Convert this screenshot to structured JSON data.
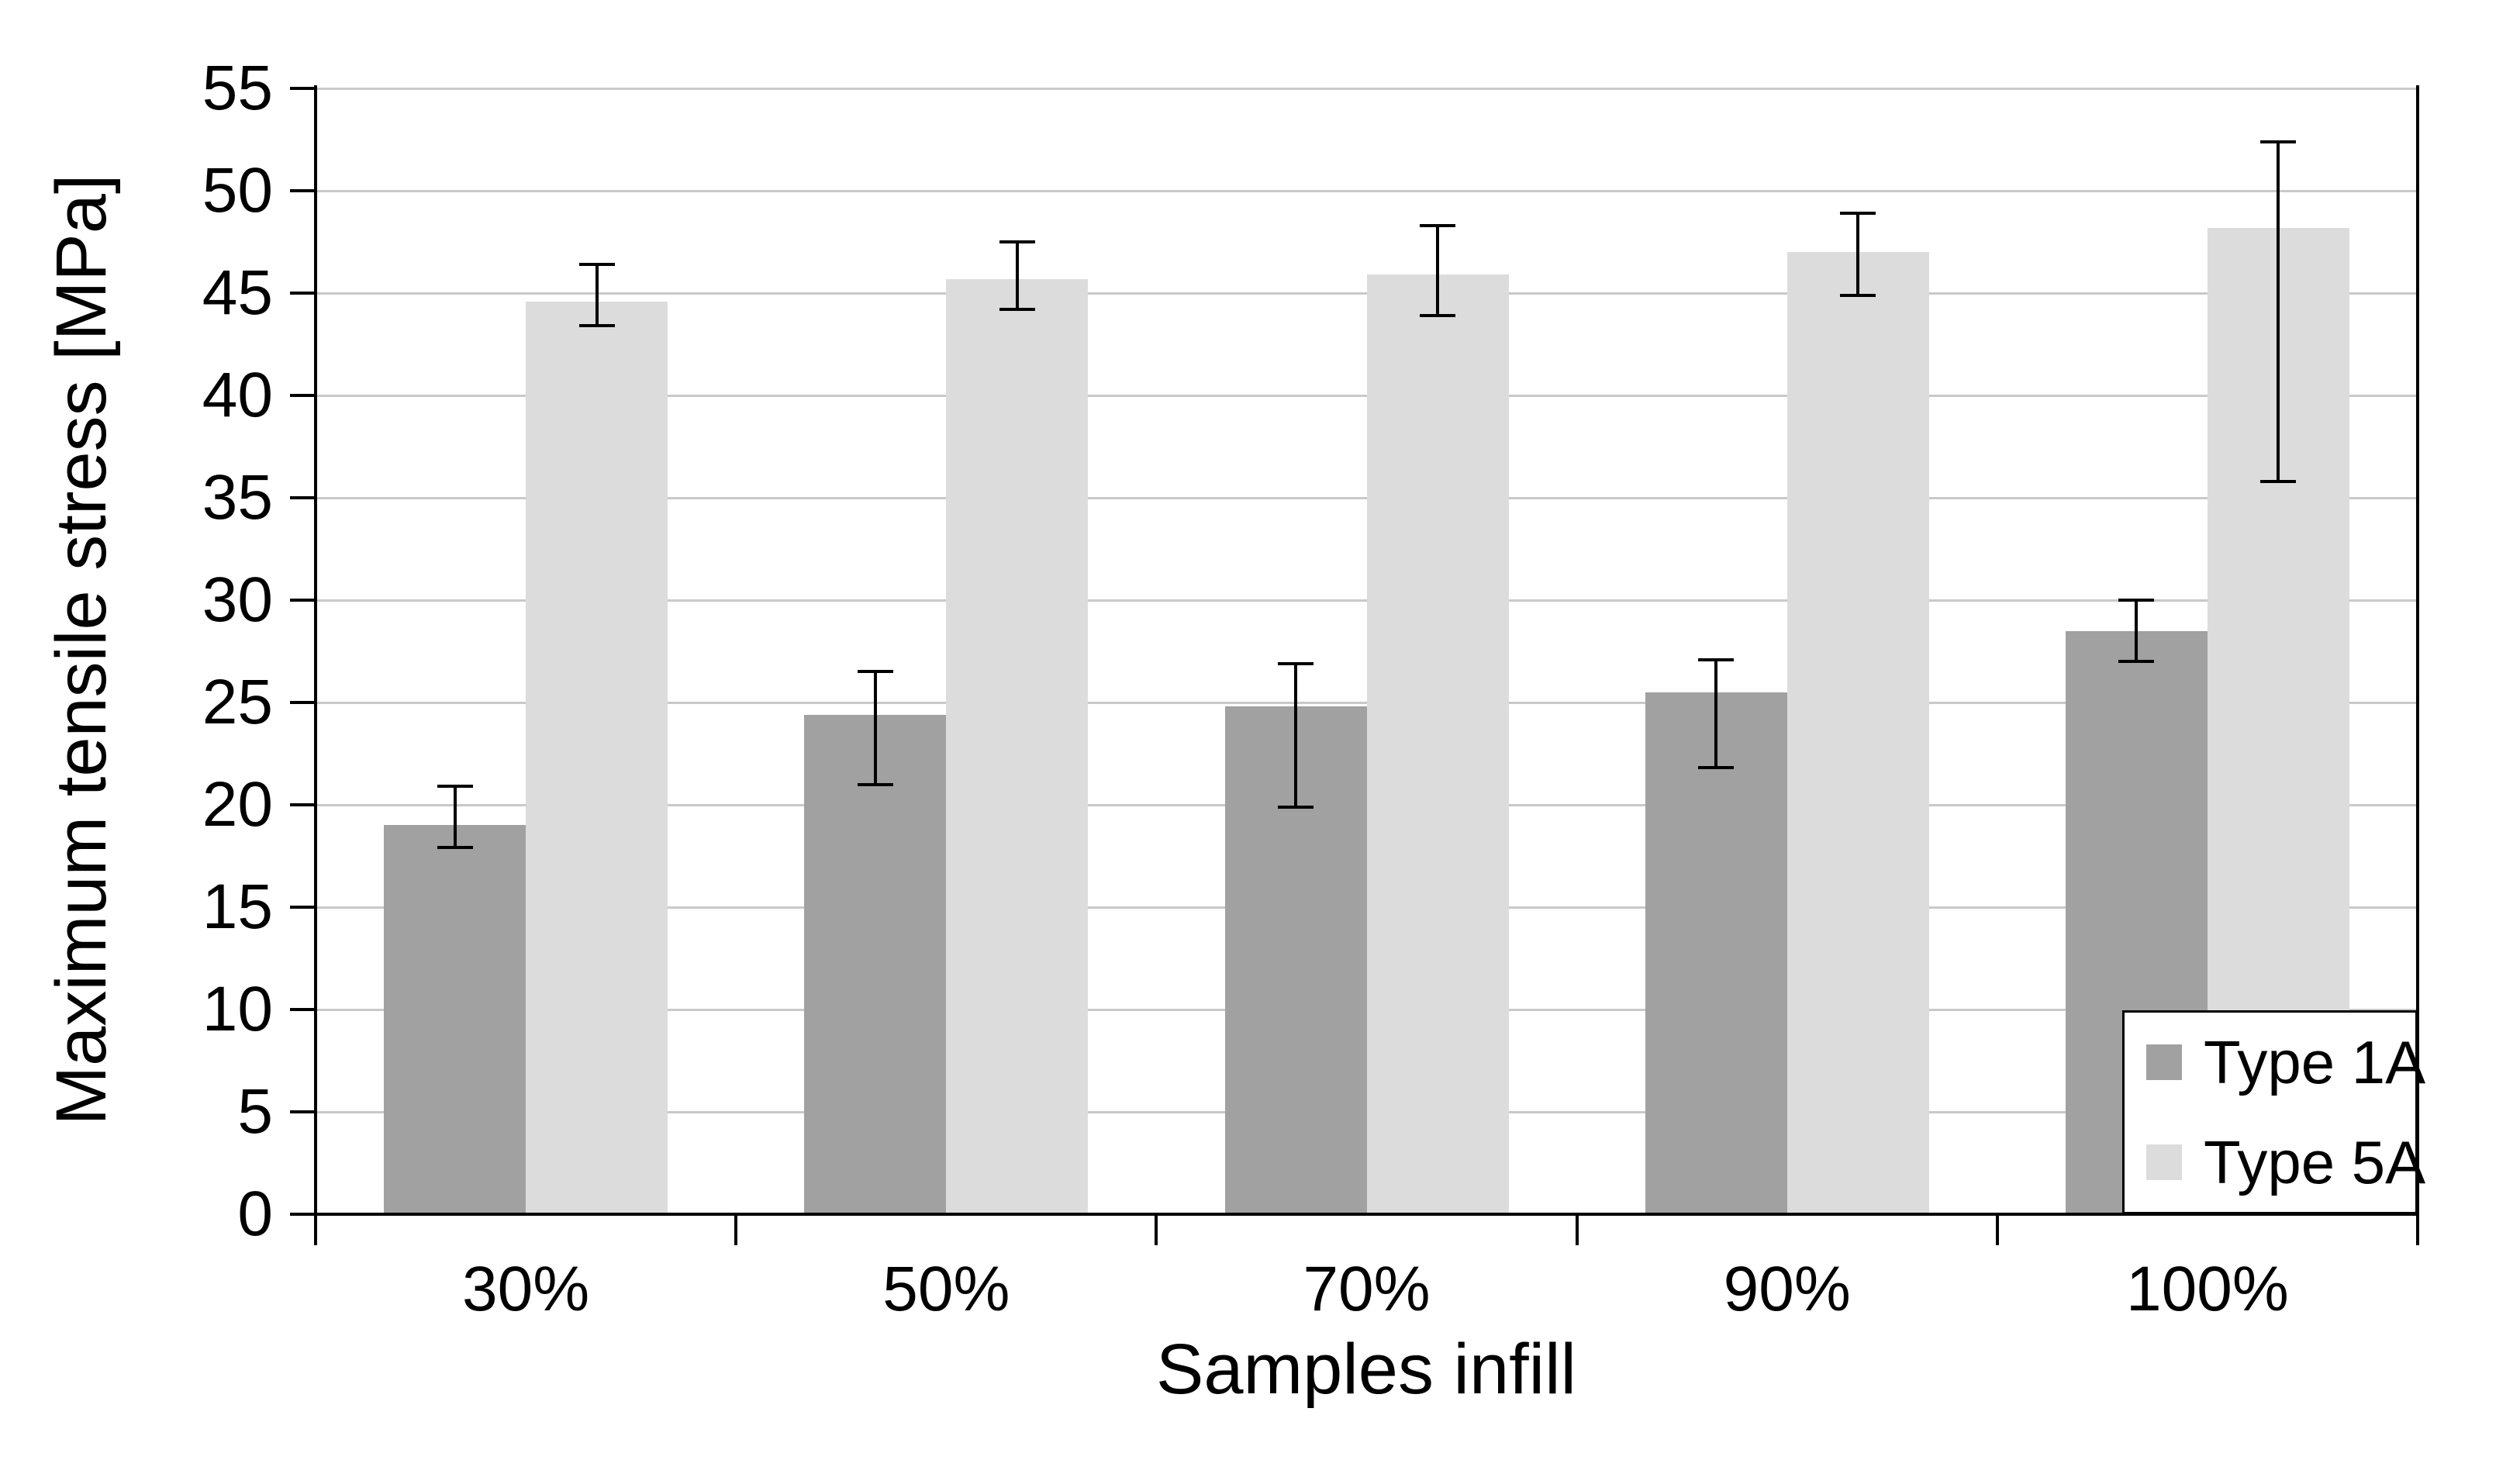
{
  "chart_data": {
    "type": "bar",
    "title": "",
    "xlabel": "Samples infill",
    "ylabel": "Maximum tensile stress [MPa]",
    "categories": [
      "30%",
      "50%",
      "70%",
      "90%",
      "100%"
    ],
    "series": [
      {
        "name": "Type 1A",
        "color": "#a1a1a1",
        "values": [
          19.0,
          24.4,
          24.8,
          25.5,
          28.5
        ],
        "error_low": [
          17.9,
          21.0,
          19.9,
          21.8,
          27.0
        ],
        "error_high": [
          20.9,
          26.5,
          26.9,
          27.1,
          30.0
        ]
      },
      {
        "name": "Type 5A",
        "color": "#dcdcdc",
        "values": [
          44.6,
          45.7,
          45.9,
          47.0,
          48.2
        ],
        "error_low": [
          43.4,
          44.2,
          43.9,
          44.9,
          35.8
        ],
        "error_high": [
          46.4,
          47.5,
          48.3,
          48.9,
          52.4
        ]
      }
    ],
    "ylim": [
      0,
      55
    ],
    "ytick_step": 5,
    "grid": true,
    "legend_position": "bottom-right",
    "axis_color": "#000000",
    "gridline_color": "#c9c9c9",
    "background_color": "#ffffff"
  }
}
